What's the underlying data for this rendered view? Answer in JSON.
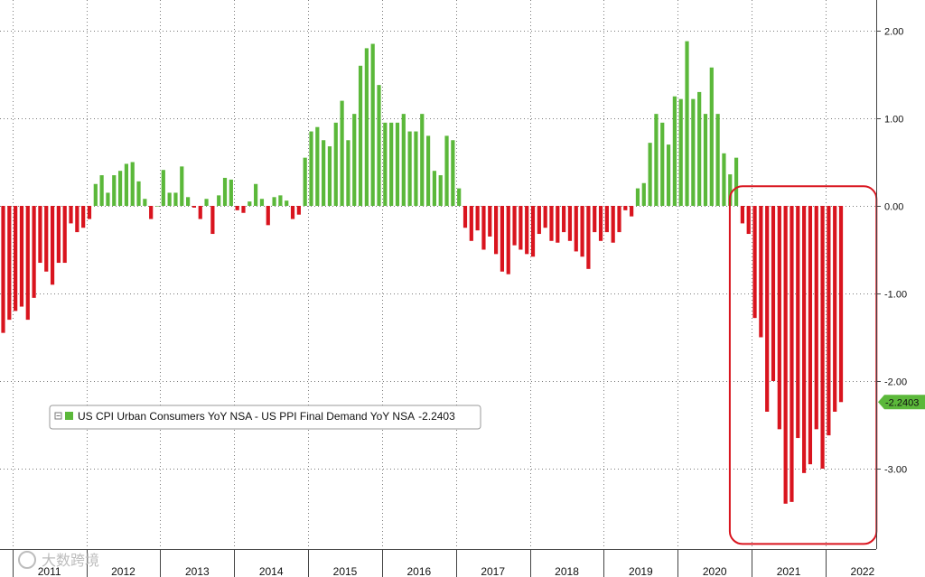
{
  "chart_data": {
    "type": "bar",
    "title": "",
    "xlabel": "",
    "ylabel": "",
    "ylim": [
      -3.95,
      2.35
    ],
    "yticks": [
      2.0,
      1.0,
      0.0,
      -1.0,
      -2.0,
      -3.0
    ],
    "ytick_labels": [
      "2.00",
      "1.00",
      "0.00",
      "-1.00",
      "-2.00",
      "-3.00"
    ],
    "grid": true,
    "legend_position": "bottom-left",
    "series": [
      {
        "name": "US CPI Urban Consumers YoY NSA - US PPI Final Demand YoY NSA",
        "last_value_label": "-2.2403",
        "positive_color": "#5bb83a",
        "negative_color": "#d9141e",
        "start": "2010-11",
        "values": [
          -1.45,
          -1.3,
          -1.2,
          -1.15,
          -1.3,
          -1.05,
          -0.65,
          -0.75,
          -0.9,
          -0.65,
          -0.65,
          -0.2,
          -0.3,
          -0.25,
          -0.15,
          0.25,
          0.35,
          0.15,
          0.35,
          0.4,
          0.48,
          0.5,
          0.28,
          0.08,
          -0.15,
          0.0,
          0.41,
          0.15,
          0.15,
          0.45,
          0.1,
          -0.02,
          -0.15,
          0.08,
          -0.32,
          0.12,
          0.32,
          0.3,
          -0.05,
          -0.08,
          0.05,
          0.25,
          0.08,
          -0.22,
          0.1,
          0.12,
          0.06,
          -0.15,
          -0.1,
          0.55,
          0.85,
          0.9,
          0.75,
          0.68,
          0.95,
          1.2,
          0.75,
          1.05,
          1.6,
          1.8,
          1.85,
          1.38,
          0.95,
          0.95,
          0.95,
          1.05,
          0.85,
          0.85,
          1.05,
          0.8,
          0.4,
          0.35,
          0.8,
          0.75,
          0.2,
          -0.25,
          -0.4,
          -0.28,
          -0.5,
          -0.35,
          -0.55,
          -0.75,
          -0.78,
          -0.45,
          -0.5,
          -0.55,
          -0.58,
          -0.32,
          -0.25,
          -0.4,
          -0.42,
          -0.3,
          -0.4,
          -0.52,
          -0.58,
          -0.72,
          -0.3,
          -0.4,
          -0.3,
          -0.42,
          -0.3,
          -0.05,
          -0.12,
          0.2,
          0.26,
          0.72,
          1.05,
          0.95,
          0.7,
          1.25,
          1.22,
          1.88,
          1.22,
          1.3,
          1.05,
          1.58,
          1.05,
          0.6,
          0.36,
          0.55,
          -0.2,
          -0.32,
          -1.28,
          -1.5,
          -2.35,
          -2.0,
          -2.55,
          -3.4,
          -3.38,
          -2.65,
          -3.05,
          -2.95,
          -2.55,
          -3.0,
          -2.62,
          -2.35,
          -2.24
        ]
      }
    ],
    "x_labels": [
      {
        "label": "2011",
        "month_index": 2
      },
      {
        "label": "2012",
        "month_index": 14
      },
      {
        "label": "2013",
        "month_index": 26
      },
      {
        "label": "2014",
        "month_index": 38
      },
      {
        "label": "2015",
        "month_index": 50
      },
      {
        "label": "2016",
        "month_index": 62
      },
      {
        "label": "2017",
        "month_index": 74
      },
      {
        "label": "2018",
        "month_index": 86
      },
      {
        "label": "2019",
        "month_index": 98
      },
      {
        "label": "2020",
        "month_index": 110
      },
      {
        "label": "2021",
        "month_index": 122
      },
      {
        "label": "2022",
        "month_index": 134
      }
    ],
    "annotations": [
      {
        "type": "rounded-rectangle",
        "color": "#d9141e",
        "x_start_index": 120,
        "x_end_index": 140,
        "y_range": [
          -3.55,
          0.1
        ]
      }
    ]
  },
  "watermark": {
    "text": "大数跨境"
  }
}
